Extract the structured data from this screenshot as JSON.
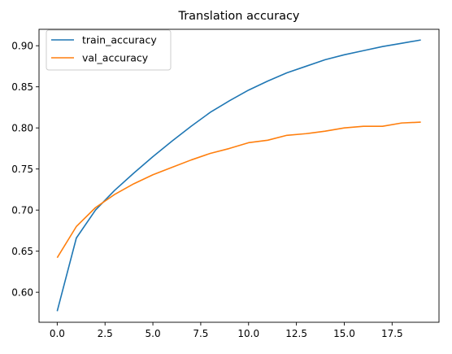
{
  "chart_data": {
    "type": "line",
    "title": "Translation accuracy",
    "xlabel": "",
    "ylabel": "",
    "xlim": [
      -0.95,
      19.95
    ],
    "ylim": [
      0.5635,
      0.92
    ],
    "x_ticks": [
      {
        "value": 0.0,
        "label": "0.0"
      },
      {
        "value": 2.5,
        "label": "2.5"
      },
      {
        "value": 5.0,
        "label": "5.0"
      },
      {
        "value": 7.5,
        "label": "7.5"
      },
      {
        "value": 10.0,
        "label": "10.0"
      },
      {
        "value": 12.5,
        "label": "12.5"
      },
      {
        "value": 15.0,
        "label": "15.0"
      },
      {
        "value": 17.5,
        "label": "17.5"
      }
    ],
    "y_ticks": [
      {
        "value": 0.6,
        "label": "0.60"
      },
      {
        "value": 0.65,
        "label": "0.65"
      },
      {
        "value": 0.7,
        "label": "0.70"
      },
      {
        "value": 0.75,
        "label": "0.75"
      },
      {
        "value": 0.8,
        "label": "0.80"
      },
      {
        "value": 0.85,
        "label": "0.85"
      },
      {
        "value": 0.9,
        "label": "0.90"
      }
    ],
    "grid": false,
    "legend_position": "upper-left",
    "x": [
      0,
      1,
      2,
      3,
      4,
      5,
      6,
      7,
      8,
      9,
      10,
      11,
      12,
      13,
      14,
      15,
      16,
      17,
      18,
      19
    ],
    "series": [
      {
        "name": "train_accuracy",
        "color": "#1f77b4",
        "values": [
          0.577,
          0.666,
          0.7,
          0.724,
          0.745,
          0.765,
          0.784,
          0.802,
          0.819,
          0.833,
          0.846,
          0.857,
          0.867,
          0.875,
          0.883,
          0.889,
          0.894,
          0.899,
          0.903,
          0.907
        ]
      },
      {
        "name": "val_accuracy",
        "color": "#ff7f0e",
        "values": [
          0.642,
          0.68,
          0.703,
          0.719,
          0.732,
          0.743,
          0.752,
          0.761,
          0.769,
          0.775,
          0.782,
          0.785,
          0.791,
          0.793,
          0.796,
          0.8,
          0.802,
          0.802,
          0.806,
          0.807
        ]
      }
    ]
  }
}
